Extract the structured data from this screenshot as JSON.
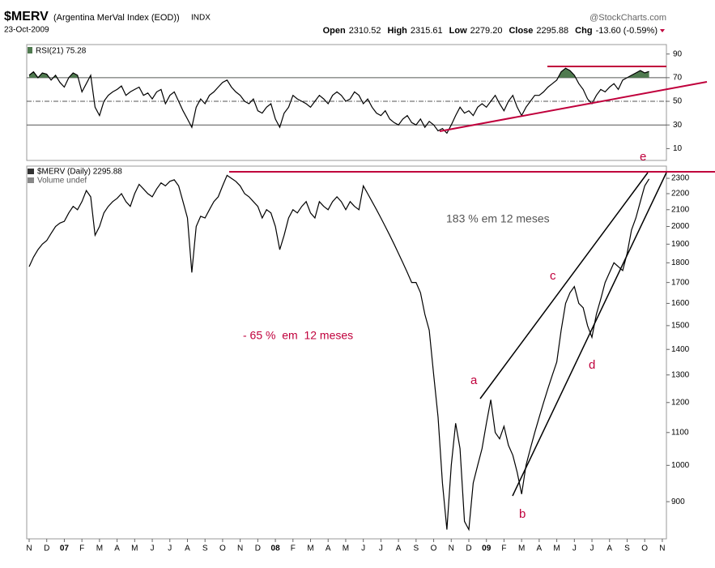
{
  "chart_data": {
    "type": "line",
    "title": "$MERV",
    "subtitle": "(Argentina MerVal Index (EOD))",
    "exchange": "INDX",
    "source": "@StockCharts.com",
    "date": "23-Oct-2009",
    "quote": [
      {
        "label": "Open",
        "text": "2310.52"
      },
      {
        "label": "High",
        "text": "2315.61"
      },
      {
        "label": "Low",
        "text": "2279.20"
      },
      {
        "label": "Close",
        "text": "2295.88"
      },
      {
        "label": "Chg",
        "text": "-13.60 (-0.59%)"
      }
    ],
    "volume_label": "Volume undef",
    "annotations": [
      "183 % em 12 meses",
      "- 65 %  em  12 meses",
      "a",
      "b",
      "c",
      "d",
      "e"
    ],
    "categories": [
      "N",
      null,
      null,
      null,
      "D",
      null,
      null,
      null,
      "07",
      null,
      null,
      null,
      "F",
      null,
      null,
      null,
      "M",
      null,
      null,
      null,
      "A",
      null,
      null,
      null,
      "M",
      null,
      null,
      null,
      "J",
      null,
      null,
      null,
      "J",
      null,
      null,
      null,
      "A",
      null,
      null,
      null,
      "S",
      null,
      null,
      null,
      "O",
      null,
      null,
      null,
      "N",
      null,
      null,
      null,
      "D",
      null,
      null,
      null,
      "08",
      null,
      null,
      null,
      "F",
      null,
      null,
      null,
      "M",
      null,
      null,
      null,
      "A",
      null,
      null,
      null,
      "M",
      null,
      null,
      null,
      "J",
      null,
      null,
      null,
      "J",
      null,
      null,
      null,
      "A",
      null,
      null,
      null,
      "S",
      null,
      null,
      null,
      "O",
      null,
      null,
      null,
      "N",
      null,
      null,
      null,
      "D",
      null,
      null,
      null,
      "09",
      null,
      null,
      null,
      "F",
      null,
      null,
      null,
      "M",
      null,
      null,
      null,
      "A",
      null,
      null,
      null,
      "M",
      null,
      null,
      null,
      "J",
      null,
      null,
      null,
      "J",
      null,
      null,
      null,
      "A",
      null,
      null,
      null,
      "S",
      null,
      null,
      null,
      "O",
      null,
      null,
      null,
      "N",
      null,
      null,
      null
    ],
    "log_scale": true,
    "ylim": [
      808,
      2383
    ],
    "yticks": [
      900,
      1000,
      1100,
      1200,
      1300,
      1400,
      1500,
      1600,
      1700,
      1800,
      1900,
      2000,
      2100,
      2200,
      2300
    ],
    "y2lim": [
      0,
      98
    ],
    "y2ticks": [
      10,
      30,
      50,
      70,
      90
    ],
    "y2_reference_lines": [
      30,
      50,
      70
    ],
    "series": [
      {
        "name": "$MERV (Daily) 2295.88",
        "color": "#000000",
        "values": [
          1780,
          1830,
          1870,
          1900,
          1920,
          1960,
          2000,
          2020,
          2030,
          2080,
          2120,
          2100,
          2150,
          2220,
          2180,
          1950,
          2000,
          2080,
          2120,
          2150,
          2170,
          2200,
          2150,
          2120,
          2200,
          2260,
          2230,
          2200,
          2180,
          2230,
          2270,
          2250,
          2280,
          2290,
          2250,
          2150,
          2050,
          1750,
          2000,
          2060,
          2050,
          2100,
          2150,
          2180,
          2250,
          2320,
          2300,
          2280,
          2250,
          2200,
          2180,
          2150,
          2120,
          2050,
          2100,
          2080,
          2000,
          1870,
          1950,
          2050,
          2100,
          2080,
          2120,
          2150,
          2080,
          2050,
          2150,
          2120,
          2100,
          2150,
          2180,
          2150,
          2100,
          2150,
          2120,
          2100,
          2250,
          2200,
          2150,
          2100,
          2050,
          2000,
          1950,
          1900,
          1850,
          1800,
          1750,
          1700,
          1700,
          1650,
          1550,
          1480,
          1300,
          1150,
          950,
          830,
          1000,
          1130,
          1050,
          850,
          830,
          950,
          1000,
          1050,
          1130,
          1210,
          1100,
          1080,
          1120,
          1060,
          1030,
          980,
          920,
          1000,
          1050,
          1100,
          1150,
          1200,
          1250,
          1300,
          1350,
          1480,
          1600,
          1650,
          1680,
          1600,
          1580,
          1500,
          1450,
          1550,
          1620,
          1700,
          1750,
          1800,
          1780,
          1760,
          1850,
          1980,
          2050,
          2150,
          2250,
          2296,
          null,
          null,
          null,
          null,
          null,
          null
        ]
      },
      {
        "name": "RSI(21) 75.28",
        "color": "#000000",
        "axis": "y2",
        "fill": "#4f7a4f",
        "values": [
          72,
          75,
          70,
          74,
          73,
          68,
          72,
          66,
          62,
          70,
          74,
          72,
          58,
          65,
          72,
          45,
          38,
          50,
          55,
          58,
          60,
          63,
          55,
          58,
          60,
          62,
          55,
          57,
          52,
          58,
          60,
          48,
          55,
          58,
          50,
          42,
          35,
          28,
          45,
          52,
          48,
          55,
          58,
          62,
          66,
          68,
          62,
          58,
          55,
          50,
          48,
          52,
          42,
          40,
          45,
          48,
          35,
          28,
          40,
          45,
          55,
          52,
          50,
          48,
          45,
          50,
          55,
          52,
          48,
          55,
          58,
          55,
          50,
          52,
          58,
          55,
          48,
          52,
          45,
          40,
          38,
          42,
          35,
          32,
          30,
          35,
          38,
          32,
          30,
          35,
          28,
          33,
          30,
          25,
          27,
          23,
          30,
          38,
          45,
          40,
          42,
          38,
          45,
          48,
          45,
          50,
          55,
          48,
          42,
          50,
          55,
          45,
          38,
          45,
          50,
          55,
          55,
          58,
          62,
          65,
          68,
          75,
          78,
          76,
          72,
          65,
          60,
          52,
          48,
          55,
          60,
          58,
          62,
          65,
          60,
          68,
          70,
          72,
          74,
          76,
          74,
          75.28,
          null,
          null,
          null,
          null,
          null,
          null
        ]
      }
    ]
  }
}
